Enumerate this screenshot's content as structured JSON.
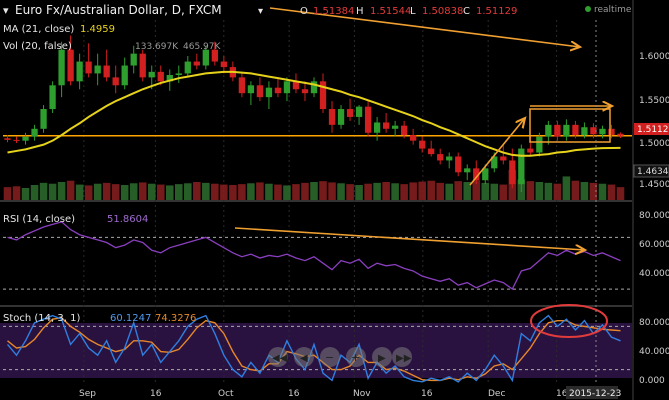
{
  "header": {
    "symbol_title": "Euro Fx/Australian Dollar, D, FXCM",
    "o_label": "O",
    "o_value": "1.51384",
    "h_label": "H",
    "h_value": "1.51544",
    "l_label": "L",
    "l_value": "1.50838",
    "c_label": "C",
    "c_value": "1.51129",
    "realtime": "realtime"
  },
  "legend": {
    "ma_label": "MA (21, close)",
    "ma_value": "1.4959",
    "vol_label": "Vol (20, false)",
    "vol_value1": "133.697K",
    "vol_value2": "465.97K",
    "rsi_label": "RSI (14, close)",
    "rsi_value": "51.8604",
    "stoch_label": "Stoch (14, 3, 1)",
    "stoch_k": "60.1247",
    "stoch_d": "74.3276"
  },
  "price_axis": {
    "ticks": [
      "1.6000",
      "1.5500",
      "1.5000",
      "1.4500"
    ],
    "current_label": "1.5112",
    "mid_label": "1.4634"
  },
  "rsi_axis": {
    "ticks": [
      "80.000",
      "60.000",
      "40.000"
    ]
  },
  "stoch_axis": {
    "ticks": [
      "80.000",
      "40.000",
      "0.000"
    ]
  },
  "date_axis": {
    "ticks": [
      "Sep",
      "16",
      "Oct",
      "16",
      "Nov",
      "16",
      "Dec",
      "16"
    ],
    "cursor_label": "2015-12-23"
  },
  "colors": {
    "up": "#2e9e2e",
    "down": "#d21f1f",
    "ma": "#e6d21a",
    "rsi": "#8a3fbf",
    "stoch_k": "#2f7fe0",
    "stoch_d": "#e6872a",
    "annotation": "#f0a030",
    "hline": "#ffa500"
  },
  "chart_data": {
    "type": "candlestick",
    "title": "Euro Fx/Australian Dollar, D, FXCM",
    "ylim": [
      1.43,
      1.655
    ],
    "candles": [
      {
        "o": 1.508,
        "h": 1.512,
        "l": 1.503,
        "c": 1.506
      },
      {
        "o": 1.506,
        "h": 1.51,
        "l": 1.502,
        "c": 1.505
      },
      {
        "o": 1.505,
        "h": 1.515,
        "l": 1.5,
        "c": 1.51
      },
      {
        "o": 1.51,
        "h": 1.525,
        "l": 1.505,
        "c": 1.52
      },
      {
        "o": 1.52,
        "h": 1.55,
        "l": 1.515,
        "c": 1.545
      },
      {
        "o": 1.545,
        "h": 1.58,
        "l": 1.54,
        "c": 1.575
      },
      {
        "o": 1.575,
        "h": 1.63,
        "l": 1.56,
        "c": 1.62
      },
      {
        "o": 1.62,
        "h": 1.638,
        "l": 1.575,
        "c": 1.58
      },
      {
        "o": 1.58,
        "h": 1.615,
        "l": 1.57,
        "c": 1.605
      },
      {
        "o": 1.605,
        "h": 1.628,
        "l": 1.585,
        "c": 1.59
      },
      {
        "o": 1.59,
        "h": 1.615,
        "l": 1.575,
        "c": 1.6
      },
      {
        "o": 1.6,
        "h": 1.62,
        "l": 1.58,
        "c": 1.585
      },
      {
        "o": 1.585,
        "h": 1.6,
        "l": 1.565,
        "c": 1.575
      },
      {
        "o": 1.575,
        "h": 1.61,
        "l": 1.57,
        "c": 1.6
      },
      {
        "o": 1.6,
        "h": 1.625,
        "l": 1.59,
        "c": 1.615
      },
      {
        "o": 1.615,
        "h": 1.62,
        "l": 1.58,
        "c": 1.585
      },
      {
        "o": 1.585,
        "h": 1.6,
        "l": 1.57,
        "c": 1.592
      },
      {
        "o": 1.592,
        "h": 1.6,
        "l": 1.575,
        "c": 1.58
      },
      {
        "o": 1.58,
        "h": 1.595,
        "l": 1.568,
        "c": 1.588
      },
      {
        "o": 1.588,
        "h": 1.6,
        "l": 1.578,
        "c": 1.59
      },
      {
        "o": 1.59,
        "h": 1.612,
        "l": 1.585,
        "c": 1.605
      },
      {
        "o": 1.605,
        "h": 1.615,
        "l": 1.595,
        "c": 1.6
      },
      {
        "o": 1.6,
        "h": 1.625,
        "l": 1.595,
        "c": 1.62
      },
      {
        "o": 1.62,
        "h": 1.63,
        "l": 1.6,
        "c": 1.605
      },
      {
        "o": 1.605,
        "h": 1.612,
        "l": 1.59,
        "c": 1.598
      },
      {
        "o": 1.598,
        "h": 1.605,
        "l": 1.58,
        "c": 1.585
      },
      {
        "o": 1.585,
        "h": 1.592,
        "l": 1.56,
        "c": 1.565
      },
      {
        "o": 1.565,
        "h": 1.58,
        "l": 1.55,
        "c": 1.575
      },
      {
        "o": 1.575,
        "h": 1.585,
        "l": 1.555,
        "c": 1.56
      },
      {
        "o": 1.56,
        "h": 1.58,
        "l": 1.545,
        "c": 1.572
      },
      {
        "o": 1.572,
        "h": 1.585,
        "l": 1.56,
        "c": 1.565
      },
      {
        "o": 1.565,
        "h": 1.585,
        "l": 1.555,
        "c": 1.58
      },
      {
        "o": 1.58,
        "h": 1.59,
        "l": 1.565,
        "c": 1.57
      },
      {
        "o": 1.57,
        "h": 1.58,
        "l": 1.555,
        "c": 1.565
      },
      {
        "o": 1.565,
        "h": 1.585,
        "l": 1.56,
        "c": 1.58
      },
      {
        "o": 1.58,
        "h": 1.59,
        "l": 1.54,
        "c": 1.545
      },
      {
        "o": 1.545,
        "h": 1.555,
        "l": 1.515,
        "c": 1.525
      },
      {
        "o": 1.525,
        "h": 1.55,
        "l": 1.52,
        "c": 1.545
      },
      {
        "o": 1.545,
        "h": 1.558,
        "l": 1.53,
        "c": 1.535
      },
      {
        "o": 1.535,
        "h": 1.55,
        "l": 1.525,
        "c": 1.548
      },
      {
        "o": 1.548,
        "h": 1.555,
        "l": 1.51,
        "c": 1.515
      },
      {
        "o": 1.515,
        "h": 1.535,
        "l": 1.505,
        "c": 1.528
      },
      {
        "o": 1.528,
        "h": 1.54,
        "l": 1.515,
        "c": 1.52
      },
      {
        "o": 1.52,
        "h": 1.53,
        "l": 1.51,
        "c": 1.524
      },
      {
        "o": 1.524,
        "h": 1.53,
        "l": 1.508,
        "c": 1.512
      },
      {
        "o": 1.512,
        "h": 1.52,
        "l": 1.5,
        "c": 1.505
      },
      {
        "o": 1.505,
        "h": 1.51,
        "l": 1.49,
        "c": 1.495
      },
      {
        "o": 1.495,
        "h": 1.505,
        "l": 1.485,
        "c": 1.488
      },
      {
        "o": 1.488,
        "h": 1.495,
        "l": 1.475,
        "c": 1.48
      },
      {
        "o": 1.48,
        "h": 1.49,
        "l": 1.47,
        "c": 1.485
      },
      {
        "o": 1.485,
        "h": 1.49,
        "l": 1.46,
        "c": 1.465
      },
      {
        "o": 1.465,
        "h": 1.475,
        "l": 1.455,
        "c": 1.47
      },
      {
        "o": 1.47,
        "h": 1.48,
        "l": 1.45,
        "c": 1.455
      },
      {
        "o": 1.455,
        "h": 1.475,
        "l": 1.45,
        "c": 1.47
      },
      {
        "o": 1.47,
        "h": 1.49,
        "l": 1.465,
        "c": 1.485
      },
      {
        "o": 1.485,
        "h": 1.5,
        "l": 1.475,
        "c": 1.48
      },
      {
        "o": 1.48,
        "h": 1.495,
        "l": 1.445,
        "c": 1.45
      },
      {
        "o": 1.45,
        "h": 1.5,
        "l": 1.44,
        "c": 1.495
      },
      {
        "o": 1.495,
        "h": 1.51,
        "l": 1.485,
        "c": 1.49
      },
      {
        "o": 1.49,
        "h": 1.515,
        "l": 1.485,
        "c": 1.51
      },
      {
        "o": 1.51,
        "h": 1.53,
        "l": 1.5,
        "c": 1.525
      },
      {
        "o": 1.525,
        "h": 1.53,
        "l": 1.505,
        "c": 1.51
      },
      {
        "o": 1.51,
        "h": 1.532,
        "l": 1.505,
        "c": 1.525
      },
      {
        "o": 1.525,
        "h": 1.53,
        "l": 1.508,
        "c": 1.512
      },
      {
        "o": 1.512,
        "h": 1.528,
        "l": 1.508,
        "c": 1.522
      },
      {
        "o": 1.522,
        "h": 1.527,
        "l": 1.508,
        "c": 1.513
      },
      {
        "o": 1.513,
        "h": 1.524,
        "l": 1.508,
        "c": 1.52
      },
      {
        "o": 1.52,
        "h": 1.525,
        "l": 1.508,
        "c": 1.512
      },
      {
        "o": 1.5138,
        "h": 1.5154,
        "l": 1.5084,
        "c": 1.5113
      }
    ],
    "ma21": [
      1.49,
      1.492,
      1.494,
      1.497,
      1.5,
      1.505,
      1.512,
      1.52,
      1.527,
      1.535,
      1.542,
      1.549,
      1.555,
      1.56,
      1.565,
      1.57,
      1.574,
      1.578,
      1.581,
      1.584,
      1.586,
      1.588,
      1.59,
      1.591,
      1.592,
      1.592,
      1.591,
      1.59,
      1.588,
      1.586,
      1.584,
      1.582,
      1.58,
      1.578,
      1.576,
      1.573,
      1.57,
      1.567,
      1.563,
      1.56,
      1.556,
      1.552,
      1.548,
      1.544,
      1.54,
      1.536,
      1.531,
      1.527,
      1.522,
      1.518,
      1.513,
      1.508,
      1.503,
      1.498,
      1.494,
      1.49,
      1.487,
      1.486,
      1.486,
      1.487,
      1.488,
      1.49,
      1.491,
      1.493,
      1.494,
      1.495,
      1.4955,
      1.4958,
      1.4959
    ],
    "volume": [
      30,
      32,
      28,
      35,
      40,
      38,
      42,
      45,
      36,
      34,
      38,
      40,
      37,
      35,
      39,
      41,
      38,
      36,
      34,
      37,
      39,
      42,
      40,
      38,
      36,
      35,
      37,
      39,
      41,
      38,
      36,
      34,
      37,
      40,
      42,
      44,
      41,
      39,
      37,
      35,
      38,
      40,
      42,
      39,
      37,
      41,
      43,
      45,
      40,
      38,
      44,
      42,
      46,
      40,
      38,
      36,
      70,
      48,
      44,
      42,
      40,
      38,
      55,
      45,
      42,
      40,
      38,
      36,
      30
    ],
    "rsi": [
      70,
      68,
      72,
      75,
      78,
      80,
      82,
      76,
      72,
      70,
      68,
      66,
      62,
      64,
      68,
      66,
      60,
      58,
      62,
      64,
      66,
      68,
      70,
      66,
      62,
      58,
      55,
      57,
      54,
      56,
      55,
      57,
      54,
      52,
      55,
      50,
      45,
      52,
      50,
      53,
      46,
      50,
      48,
      49,
      46,
      44,
      40,
      38,
      36,
      38,
      33,
      35,
      31,
      34,
      37,
      35,
      30,
      44,
      46,
      52,
      58,
      56,
      60,
      57,
      59,
      56,
      58,
      55,
      52
    ],
    "rsi_ylim": [
      20,
      95
    ],
    "stoch_k": [
      55,
      40,
      60,
      85,
      90,
      95,
      90,
      55,
      70,
      50,
      40,
      60,
      30,
      50,
      85,
      40,
      55,
      30,
      45,
      60,
      80,
      90,
      95,
      70,
      40,
      20,
      10,
      30,
      15,
      40,
      30,
      60,
      35,
      20,
      55,
      15,
      5,
      40,
      30,
      55,
      8,
      30,
      15,
      25,
      10,
      5,
      3,
      8,
      5,
      10,
      3,
      15,
      5,
      20,
      40,
      25,
      5,
      70,
      60,
      85,
      95,
      80,
      90,
      75,
      88,
      70,
      82,
      65,
      60
    ],
    "stoch_d": [
      60,
      50,
      52,
      62,
      78,
      90,
      92,
      80,
      72,
      62,
      55,
      50,
      45,
      48,
      60,
      60,
      58,
      45,
      44,
      48,
      62,
      78,
      88,
      85,
      70,
      45,
      25,
      20,
      18,
      28,
      28,
      45,
      42,
      38,
      40,
      30,
      20,
      20,
      25,
      40,
      30,
      30,
      20,
      22,
      18,
      12,
      6,
      5,
      5,
      8,
      6,
      10,
      8,
      14,
      25,
      28,
      20,
      35,
      50,
      70,
      85,
      88,
      88,
      82,
      80,
      78,
      76,
      75,
      74
    ]
  }
}
